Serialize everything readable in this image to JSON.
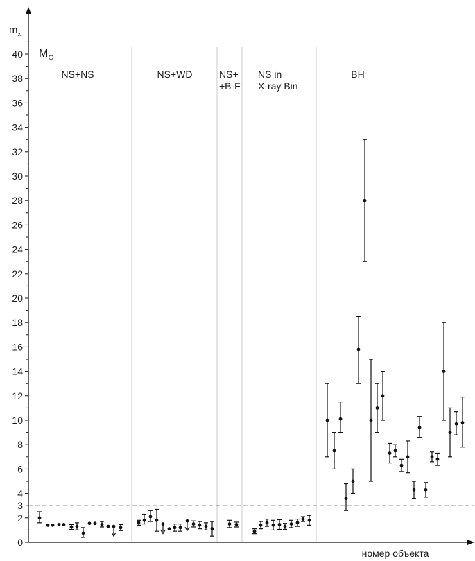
{
  "chart_data": {
    "type": "scatter",
    "ylabel_main": "m",
    "ylabel_sub": "x",
    "unit_main": "M",
    "unit_sub": "⊙",
    "xlabel": "номер объекта",
    "ylim": [
      0,
      41
    ],
    "y_ticks": [
      0,
      2,
      3,
      4,
      6,
      8,
      10,
      12,
      14,
      16,
      18,
      20,
      22,
      24,
      26,
      28,
      30,
      32,
      34,
      36,
      38,
      40
    ],
    "reference_line": 3,
    "sections": [
      {
        "label_lines": [
          "NS+NS"
        ]
      },
      {
        "label_lines": [
          "NS+WD"
        ]
      },
      {
        "label_lines": [
          "NS+",
          "+B-F"
        ]
      },
      {
        "label_lines": [
          "NS in",
          "X-ray Bin"
        ]
      },
      {
        "label_lines": [
          "BH"
        ]
      }
    ],
    "points": [
      {
        "section": 0,
        "y": 2.0,
        "lo": 1.6,
        "hi": 2.5
      },
      {
        "section": 0,
        "y": 1.4
      },
      {
        "section": 0,
        "y": 1.4
      },
      {
        "section": 0,
        "y": 1.45
      },
      {
        "section": 0,
        "y": 1.45
      },
      {
        "section": 0,
        "y": 1.25,
        "lo": 1.05,
        "hi": 1.45
      },
      {
        "section": 0,
        "y": 1.3,
        "lo": 1.0,
        "hi": 1.6
      },
      {
        "section": 0,
        "y": 0.75,
        "lo": 0.4,
        "hi": 1.2
      },
      {
        "section": 0,
        "y": 1.55
      },
      {
        "section": 0,
        "y": 1.55
      },
      {
        "section": 0,
        "y": 1.45,
        "lo": 1.25,
        "hi": 1.7
      },
      {
        "section": 0,
        "y": 1.3
      },
      {
        "section": 0,
        "y": 1.3,
        "upper_limit": true
      },
      {
        "section": 0,
        "y": 1.2,
        "lo": 0.95,
        "hi": 1.45
      },
      {
        "section": 1,
        "y": 1.6,
        "lo": 1.4,
        "hi": 1.8
      },
      {
        "section": 1,
        "y": 1.8,
        "lo": 1.5,
        "hi": 2.3
      },
      {
        "section": 1,
        "y": 2.1,
        "lo": 1.7,
        "hi": 2.6
      },
      {
        "section": 1,
        "y": 1.8,
        "lo": 0.9,
        "hi": 2.7
      },
      {
        "section": 1,
        "y": 1.5,
        "upper_limit": true
      },
      {
        "section": 1,
        "y": 1.1
      },
      {
        "section": 1,
        "y": 1.2,
        "lo": 0.9,
        "hi": 1.5
      },
      {
        "section": 1,
        "y": 1.2,
        "lo": 0.9,
        "hi": 1.5
      },
      {
        "section": 1,
        "y": 1.75,
        "upper_limit": true
      },
      {
        "section": 1,
        "y": 1.5,
        "lo": 1.25,
        "hi": 1.75
      },
      {
        "section": 1,
        "y": 1.4,
        "lo": 1.1,
        "hi": 1.7
      },
      {
        "section": 1,
        "y": 1.3,
        "lo": 1.0,
        "hi": 1.6
      },
      {
        "section": 1,
        "y": 1.1,
        "lo": 0.5,
        "hi": 1.7
      },
      {
        "section": 2,
        "y": 1.5,
        "lo": 1.2,
        "hi": 1.8
      },
      {
        "section": 2,
        "y": 1.45,
        "lo": 1.25,
        "hi": 1.65
      },
      {
        "section": 3,
        "y": 0.9,
        "lo": 0.7,
        "hi": 1.1
      },
      {
        "section": 3,
        "y": 1.4,
        "lo": 1.1,
        "hi": 1.7
      },
      {
        "section": 3,
        "y": 1.6,
        "lo": 1.3,
        "hi": 1.9
      },
      {
        "section": 3,
        "y": 1.4,
        "lo": 1.0,
        "hi": 1.8
      },
      {
        "section": 3,
        "y": 1.45,
        "lo": 1.05,
        "hi": 1.85
      },
      {
        "section": 3,
        "y": 1.3,
        "lo": 1.05,
        "hi": 1.55
      },
      {
        "section": 3,
        "y": 1.5,
        "lo": 1.2,
        "hi": 1.8
      },
      {
        "section": 3,
        "y": 1.6,
        "lo": 1.3,
        "hi": 1.9
      },
      {
        "section": 3,
        "y": 1.9,
        "lo": 1.7,
        "hi": 2.1
      },
      {
        "section": 3,
        "y": 1.8,
        "lo": 1.4,
        "hi": 2.2
      },
      {
        "section": 4,
        "y": 10.0,
        "lo": 7.0,
        "hi": 13.0
      },
      {
        "section": 4,
        "y": 7.5,
        "lo": 6.0,
        "hi": 9.0
      },
      {
        "section": 4,
        "y": 10.1,
        "lo": 9.0,
        "hi": 11.5
      },
      {
        "section": 4,
        "y": 3.6,
        "lo": 2.6,
        "hi": 4.8
      },
      {
        "section": 4,
        "y": 5.0,
        "lo": 4.0,
        "hi": 6.0
      },
      {
        "section": 4,
        "y": 15.8,
        "lo": 13.0,
        "hi": 18.5
      },
      {
        "section": 4,
        "y": 28.0,
        "lo": 23.0,
        "hi": 33.0
      },
      {
        "section": 4,
        "y": 10.0,
        "lo": 5.0,
        "hi": 15.0
      },
      {
        "section": 4,
        "y": 11.0,
        "lo": 9.0,
        "hi": 13.0
      },
      {
        "section": 4,
        "y": 12.0,
        "lo": 10.0,
        "hi": 14.0
      },
      {
        "section": 4,
        "y": 7.3,
        "lo": 6.5,
        "hi": 8.1
      },
      {
        "section": 4,
        "y": 7.5,
        "lo": 7.0,
        "hi": 8.0
      },
      {
        "section": 4,
        "y": 6.3,
        "lo": 5.8,
        "hi": 6.8
      },
      {
        "section": 4,
        "y": 7.0,
        "lo": 5.7,
        "hi": 8.3
      },
      {
        "section": 4,
        "y": 4.3,
        "lo": 3.6,
        "hi": 5.0
      },
      {
        "section": 4,
        "y": 9.4,
        "lo": 8.6,
        "hi": 10.3
      },
      {
        "section": 4,
        "y": 4.3,
        "lo": 3.7,
        "hi": 4.9
      },
      {
        "section": 4,
        "y": 7.0,
        "lo": 6.6,
        "hi": 7.4
      },
      {
        "section": 4,
        "y": 6.8,
        "lo": 6.3,
        "hi": 7.3
      },
      {
        "section": 4,
        "y": 14.0,
        "lo": 10.0,
        "hi": 18.0
      },
      {
        "section": 4,
        "y": 9.0,
        "lo": 7.0,
        "hi": 11.0
      },
      {
        "section": 4,
        "y": 9.7,
        "lo": 8.8,
        "hi": 10.7
      },
      {
        "section": 4,
        "y": 9.8,
        "lo": 7.8,
        "hi": 11.9
      }
    ]
  }
}
